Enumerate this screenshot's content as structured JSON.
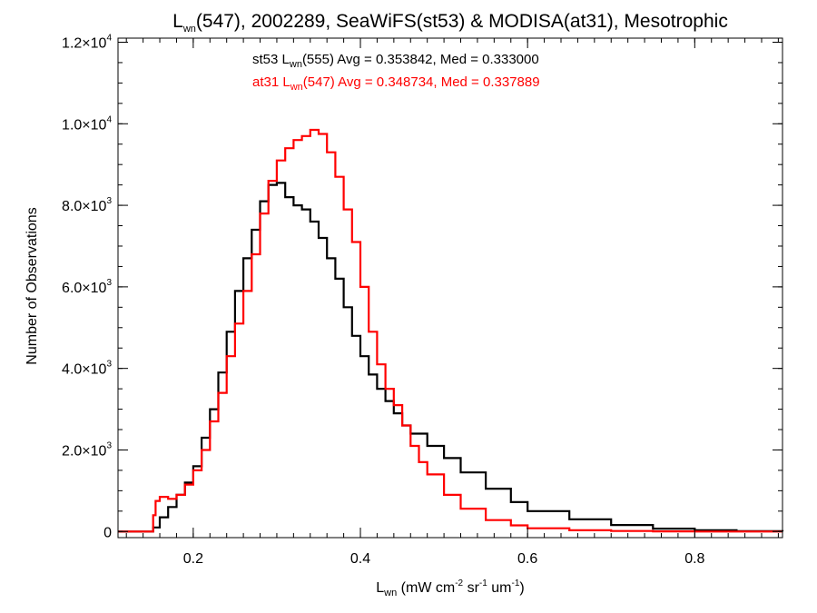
{
  "chart_data": {
    "type": "line",
    "title": {
      "symbol": "L",
      "symbol_sub": "wn",
      "rest": "(547), 2002289, SeaWiFS(st53) & MODISA(at31), Mesotrophic"
    },
    "xlabel": {
      "symbol": "L",
      "symbol_sub": "wn",
      "units_open": " (mW cm",
      "cm_exp": "-2",
      "sr": " sr",
      "sr_exp": "-1",
      "um": " um",
      "um_exp": "-1",
      "units_close": ")"
    },
    "ylabel": "Number of Observations",
    "xlim": [
      0.11,
      0.905
    ],
    "ylim": [
      -150,
      12100
    ],
    "xticks": [
      {
        "value": 0.2,
        "label": "0.2"
      },
      {
        "value": 0.4,
        "label": "0.4"
      },
      {
        "value": 0.6,
        "label": "0.6"
      },
      {
        "value": 0.8,
        "label": "0.8"
      }
    ],
    "yticks": [
      {
        "value": 0,
        "mant": "0",
        "exp": ""
      },
      {
        "value": 2000,
        "mant": "2.0×10",
        "exp": "3"
      },
      {
        "value": 4000,
        "mant": "4.0×10",
        "exp": "3"
      },
      {
        "value": 6000,
        "mant": "6.0×10",
        "exp": "3"
      },
      {
        "value": 8000,
        "mant": "8.0×10",
        "exp": "3"
      },
      {
        "value": 10000,
        "mant": "1.0×10",
        "exp": "4"
      },
      {
        "value": 12000,
        "mant": "1.2×10",
        "exp": "4"
      }
    ],
    "step": "histogram",
    "series": [
      {
        "name": "st53",
        "color": "#000000",
        "legend": {
          "pre": "st53 L",
          "sub": "wn",
          "post": "(555) Avg = 0.353842, Med = 0.333000"
        },
        "x": [
          0.11,
          0.15,
          0.152,
          0.16,
          0.17,
          0.18,
          0.19,
          0.2,
          0.21,
          0.22,
          0.23,
          0.24,
          0.25,
          0.26,
          0.27,
          0.28,
          0.29,
          0.3,
          0.31,
          0.32,
          0.33,
          0.34,
          0.35,
          0.36,
          0.37,
          0.38,
          0.39,
          0.4,
          0.41,
          0.42,
          0.43,
          0.44,
          0.45,
          0.46,
          0.48,
          0.5,
          0.52,
          0.55,
          0.58,
          0.6,
          0.65,
          0.7,
          0.75,
          0.8,
          0.85,
          0.905
        ],
        "y": [
          0,
          0,
          100,
          350,
          600,
          900,
          1200,
          1600,
          2300,
          3000,
          3900,
          4900,
          5900,
          6700,
          7400,
          8100,
          8500,
          8550,
          8200,
          8000,
          7900,
          7600,
          7200,
          6700,
          6200,
          5500,
          4800,
          4300,
          3850,
          3500,
          3200,
          2900,
          2600,
          2400,
          2100,
          1800,
          1450,
          1050,
          720,
          500,
          300,
          160,
          70,
          30,
          10,
          0
        ]
      },
      {
        "name": "at31",
        "color": "#ff0000",
        "legend": {
          "pre": "at31 L",
          "sub": "wn",
          "post": "(547) Avg = 0.348734, Med = 0.337889"
        },
        "x": [
          0.11,
          0.15,
          0.152,
          0.155,
          0.16,
          0.17,
          0.18,
          0.19,
          0.2,
          0.21,
          0.22,
          0.23,
          0.24,
          0.25,
          0.26,
          0.27,
          0.28,
          0.29,
          0.3,
          0.31,
          0.32,
          0.33,
          0.34,
          0.35,
          0.36,
          0.37,
          0.38,
          0.39,
          0.4,
          0.41,
          0.42,
          0.43,
          0.44,
          0.45,
          0.46,
          0.47,
          0.48,
          0.5,
          0.52,
          0.55,
          0.58,
          0.6,
          0.65,
          0.7,
          0.75,
          0.8,
          0.85,
          0.905
        ],
        "y": [
          0,
          0,
          400,
          750,
          850,
          800,
          900,
          1150,
          1500,
          2000,
          2700,
          3400,
          4300,
          5100,
          5900,
          6800,
          7800,
          8600,
          9100,
          9400,
          9600,
          9700,
          9850,
          9750,
          9300,
          8700,
          7900,
          7100,
          6000,
          4900,
          4100,
          3500,
          3100,
          2600,
          2100,
          1700,
          1400,
          900,
          560,
          280,
          150,
          80,
          30,
          12,
          4,
          0,
          0,
          0
        ]
      }
    ]
  }
}
